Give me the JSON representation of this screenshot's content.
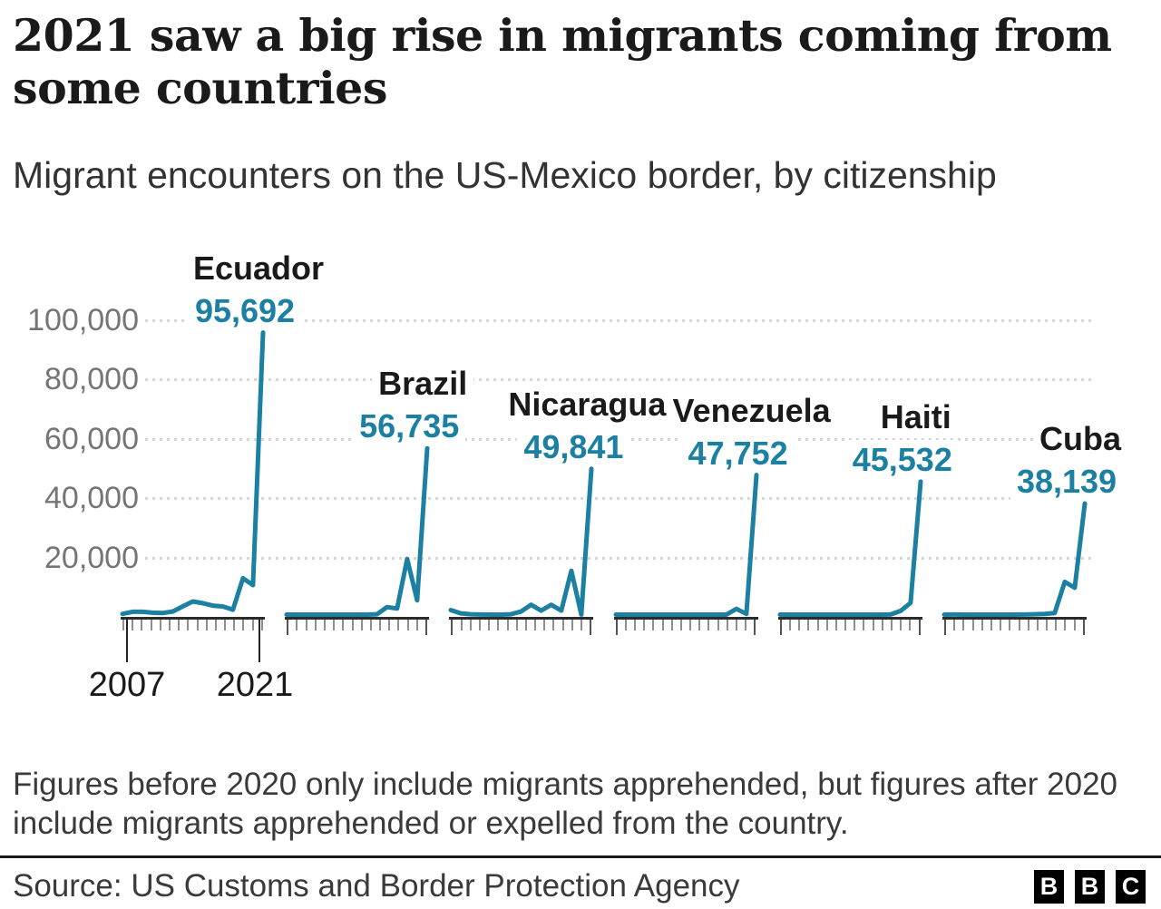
{
  "header": {
    "title": "2021 saw a big rise in migrants coming from some countries",
    "subtitle": "Migrant encounters on the US-Mexico border, by citizenship"
  },
  "chart_data": {
    "type": "line",
    "layout_hint": "six small-multiple line charts sharing one y axis, dotted horizontal gridlines",
    "x": [
      2007,
      2008,
      2009,
      2010,
      2011,
      2012,
      2013,
      2014,
      2015,
      2016,
      2017,
      2018,
      2019,
      2020,
      2021
    ],
    "x_axis": {
      "first_label": "2007",
      "last_label": "2021"
    },
    "y_axis": {
      "tick_labels": [
        "100,000",
        "80,000",
        "60,000",
        "40,000",
        "20,000"
      ],
      "tick_values": [
        100000,
        80000,
        60000,
        40000,
        20000
      ],
      "range": [
        0,
        101000
      ],
      "grid": "dotted"
    },
    "line_color": "#1B80A1",
    "series": [
      {
        "name": "Ecuador",
        "peak_label": "95,692",
        "peak_value": 95692,
        "values": [
          1000,
          1700,
          1700,
          1400,
          1300,
          1800,
          3500,
          5200,
          4600,
          3800,
          3500,
          2400,
          13000,
          10700,
          95692
        ]
      },
      {
        "name": "Brazil",
        "peak_label": "56,735",
        "peak_value": 56735,
        "values": [
          300,
          400,
          350,
          300,
          300,
          350,
          400,
          500,
          700,
          900,
          3300,
          2800,
          19500,
          5600,
          56735
        ]
      },
      {
        "name": "Nicaragua",
        "peak_label": "49,841",
        "peak_value": 49841,
        "values": [
          2300,
          1200,
          900,
          800,
          700,
          700,
          900,
          1800,
          4100,
          2100,
          4100,
          2100,
          15500,
          800,
          49841
        ]
      },
      {
        "name": "Venezuela",
        "peak_label": "47,752",
        "peak_value": 47752,
        "values": [
          80,
          80,
          80,
          80,
          80,
          100,
          120,
          150,
          200,
          250,
          350,
          450,
          2700,
          1000,
          47752
        ]
      },
      {
        "name": "Haiti",
        "peak_label": "45,532",
        "peak_value": 45532,
        "values": [
          700,
          600,
          500,
          450,
          400,
          400,
          450,
          500,
          550,
          600,
          650,
          800,
          2000,
          4700,
          45532
        ]
      },
      {
        "name": "Cuba",
        "peak_label": "38,139",
        "peak_value": 38139,
        "values": [
          700,
          800,
          700,
          650,
          600,
          600,
          650,
          700,
          800,
          900,
          1000,
          1300,
          11800,
          9800,
          38139
        ]
      }
    ]
  },
  "footnote": "Figures before 2020 only include migrants apprehended, but figures after 2020 include migrants apprehended or expelled from the country.",
  "source": "Source: US Customs and Border Protection Agency",
  "logo": {
    "letters": [
      "B",
      "B",
      "C"
    ]
  },
  "colors": {
    "accent_teal": "#1B80A1",
    "grid": "#d6d6d6",
    "axis": "#2b2b2b",
    "tick": "#8f8f8f",
    "text_dark": "#1a1a1a",
    "text_gray": "#757575",
    "text_body": "#3a3a3a"
  }
}
